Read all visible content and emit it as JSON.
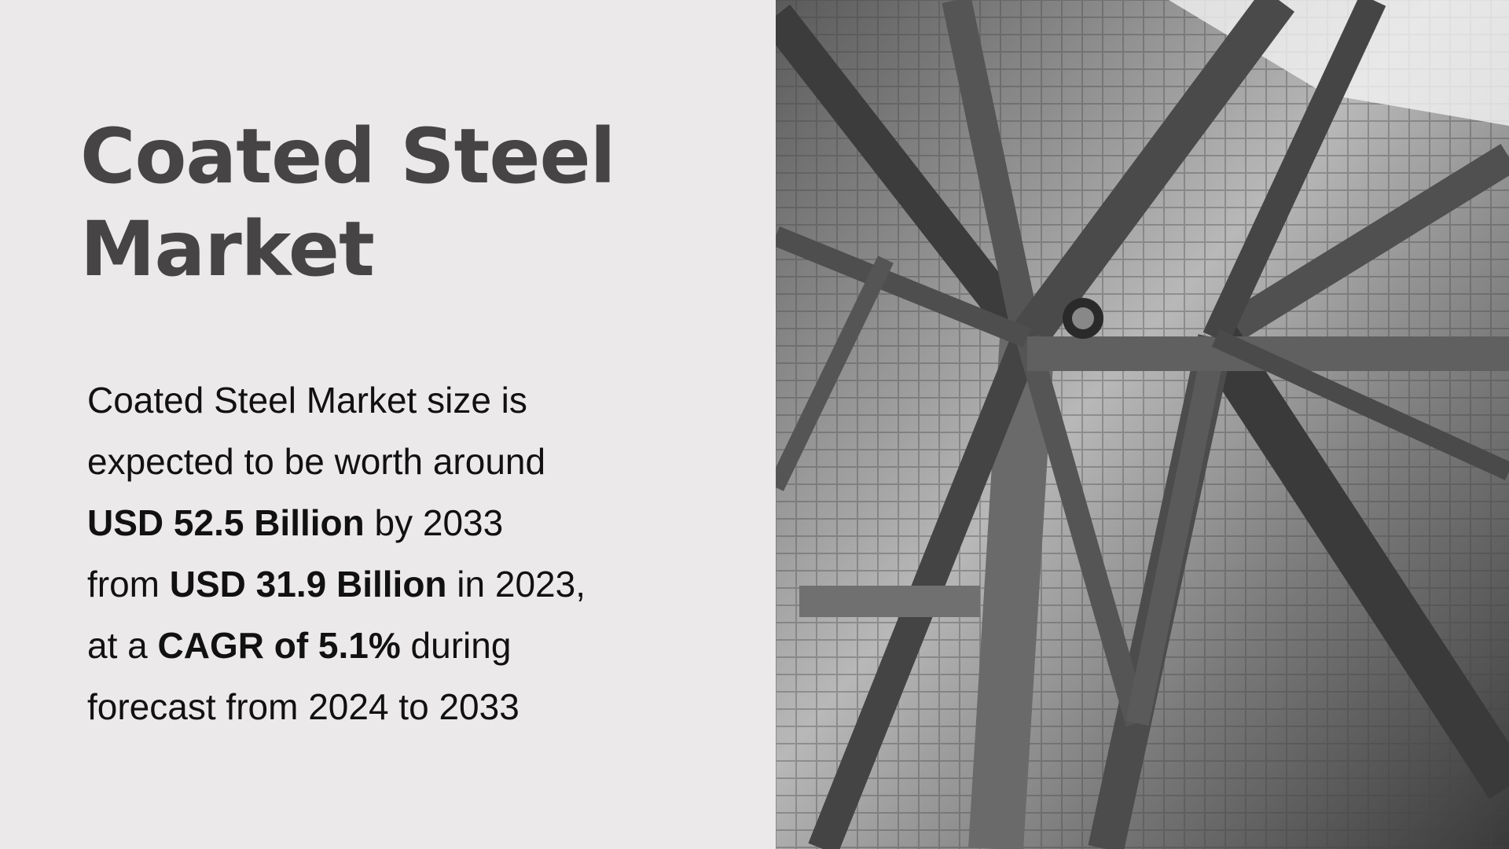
{
  "title": {
    "line1": "Coated Steel",
    "line2": "Market"
  },
  "summary": {
    "l1": "Coated Steel Market size is",
    "l2": "expected to be worth around",
    "l3_bold": "USD 52.5 Billion",
    "l3_rest": " by 2033",
    "l4_pre": "from ",
    "l4_bold": "USD 31.9 Billion",
    "l4_rest": " in 2023,",
    "l5_pre": "at a ",
    "l5_bold": "CAGR of 5.1%",
    "l5_rest": " during",
    "l6": "forecast from 2024 to 2033"
  },
  "colors": {
    "background": "#ece9ea",
    "title": "#464445",
    "text": "#111111"
  },
  "image": {
    "subject": "steel-structure-photo",
    "style": "black-and-white"
  }
}
